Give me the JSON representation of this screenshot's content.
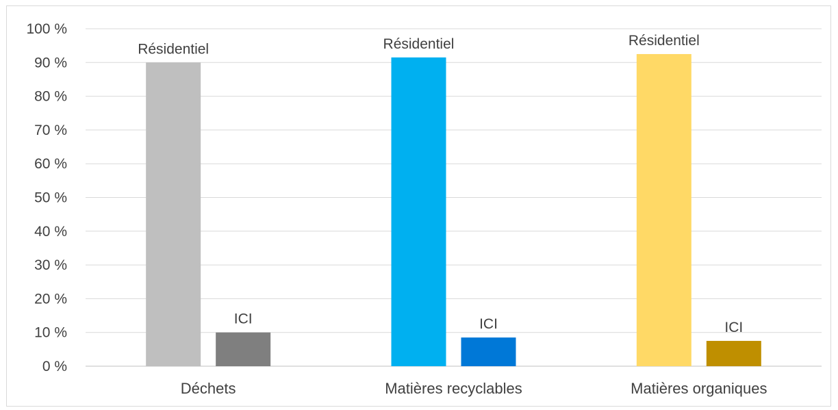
{
  "chart_data": {
    "type": "bar",
    "categories": [
      "Déchets",
      "Matières recyclables",
      "Matières organiques"
    ],
    "series_labels": [
      "Résidentiel",
      "ICI"
    ],
    "values": [
      [
        90,
        10
      ],
      [
        91.5,
        8.5
      ],
      [
        92.5,
        7.5
      ]
    ],
    "colors": [
      [
        "#bfbfbf",
        "#7f7f7f"
      ],
      [
        "#00b0f0",
        "#0078d7"
      ],
      [
        "#ffd966",
        "#bf8f00"
      ]
    ],
    "yticks": [
      "0 %",
      "10 %",
      "20 %",
      "30 %",
      "40 %",
      "50 %",
      "60 %",
      "70 %",
      "80 %",
      "90 %",
      "100 %"
    ],
    "ylim": [
      0,
      100
    ],
    "grid": true
  }
}
